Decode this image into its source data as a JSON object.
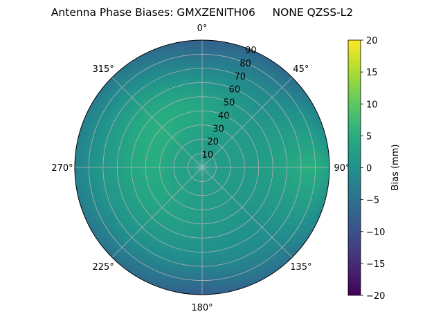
{
  "chart_data": {
    "type": "polar-heatmap",
    "title": "Antenna Phase Biases: GMXZENITH06     NONE QZSS-L2",
    "angular_axis": {
      "zero_location": "top",
      "direction": "clockwise",
      "ticks": [
        {
          "angle": 0,
          "label": "0°"
        },
        {
          "angle": 45,
          "label": "45°"
        },
        {
          "angle": 90,
          "label": "90°"
        },
        {
          "angle": 135,
          "label": "135°"
        },
        {
          "angle": 180,
          "label": "180°"
        },
        {
          "angle": 225,
          "label": "225°"
        },
        {
          "angle": 270,
          "label": "270°"
        },
        {
          "angle": 315,
          "label": "315°"
        }
      ]
    },
    "radial_axis": {
      "range": [
        0,
        90
      ],
      "ticks": [
        {
          "value": 10,
          "label": "10"
        },
        {
          "value": 20,
          "label": "20"
        },
        {
          "value": 30,
          "label": "30"
        },
        {
          "value": 40,
          "label": "40"
        },
        {
          "value": 50,
          "label": "50"
        },
        {
          "value": 60,
          "label": "60"
        },
        {
          "value": 70,
          "label": "70"
        },
        {
          "value": 80,
          "label": "80"
        },
        {
          "value": 90,
          "label": "90"
        }
      ]
    },
    "grid": true,
    "colorbar": {
      "label": "Bias (mm)",
      "range": [
        -20,
        20
      ],
      "colormap": "viridis",
      "ticks": [
        {
          "value": 20,
          "label": "20"
        },
        {
          "value": 15,
          "label": "15"
        },
        {
          "value": 10,
          "label": "10"
        },
        {
          "value": 5,
          "label": "5"
        },
        {
          "value": 0,
          "label": "0"
        },
        {
          "value": -5,
          "label": "−5"
        },
        {
          "value": -10,
          "label": "−10"
        },
        {
          "value": -15,
          "label": "−15"
        },
        {
          "value": -20,
          "label": "−20"
        }
      ]
    },
    "field": {
      "azimuth_deg": [
        0,
        45,
        90,
        135,
        180,
        225,
        270,
        315
      ],
      "zenith_deg": [
        0,
        10,
        20,
        30,
        40,
        50,
        60,
        70,
        80,
        90
      ],
      "bias_mm": [
        [
          2.0,
          2.0,
          2.0,
          2.0,
          2.0,
          2.0,
          2.0,
          2.0
        ],
        [
          2.0,
          2.0,
          2.0,
          2.0,
          2.0,
          2.5,
          2.5,
          2.5
        ],
        [
          2.5,
          2.0,
          2.0,
          2.0,
          2.0,
          3.0,
          3.5,
          3.5
        ],
        [
          3.5,
          2.0,
          2.0,
          1.5,
          2.0,
          3.5,
          5.0,
          5.0
        ],
        [
          4.0,
          1.5,
          2.0,
          1.0,
          2.0,
          3.5,
          5.0,
          5.5
        ],
        [
          3.0,
          1.0,
          3.0,
          0.5,
          1.0,
          2.5,
          4.0,
          5.0
        ],
        [
          1.0,
          0.0,
          4.0,
          0.0,
          0.0,
          1.5,
          2.5,
          3.5
        ],
        [
          -2.0,
          -1.0,
          5.0,
          -0.5,
          -2.0,
          0.0,
          1.5,
          1.5
        ],
        [
          -5.0,
          -3.0,
          5.5,
          -2.0,
          -5.0,
          -2.5,
          0.0,
          -1.0
        ],
        [
          -8.0,
          -6.0,
          3.0,
          -4.5,
          -8.0,
          -5.0,
          -2.0,
          -3.5
        ]
      ]
    }
  }
}
